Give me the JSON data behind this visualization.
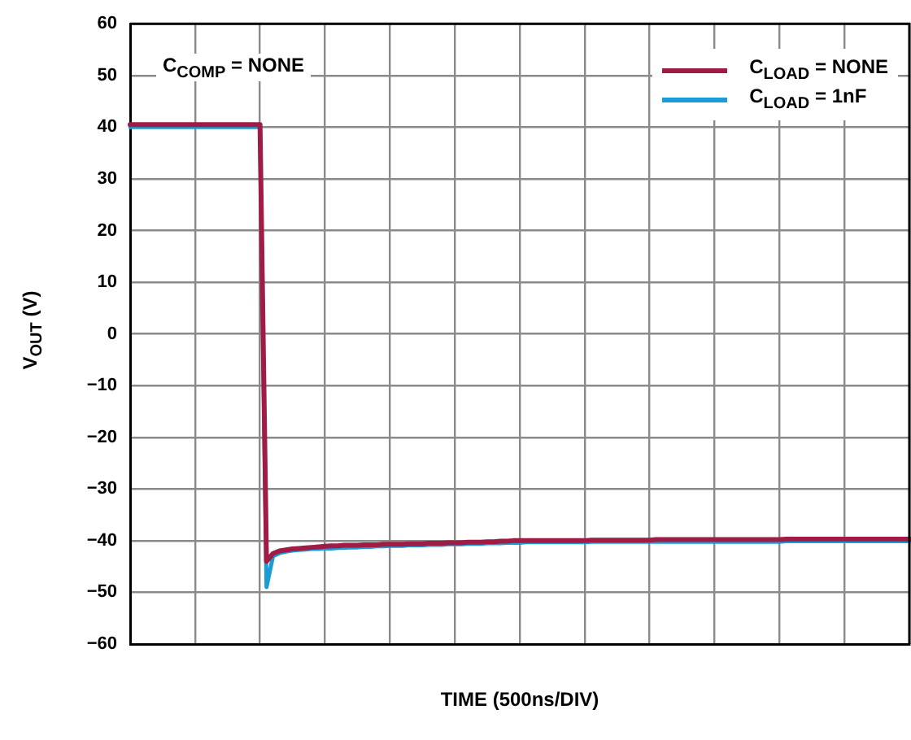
{
  "chart_data": {
    "type": "line",
    "xlabel": "TIME (500ns/DIV)",
    "ylabel": "V$_{OUT}$ (V)",
    "annotations": [
      "C$_{COMP}$ = NONE"
    ],
    "categories": [
      null,
      null,
      null,
      null,
      null,
      null,
      null,
      null,
      null,
      null,
      null,
      null,
      null,
      null,
      null,
      null,
      null,
      null,
      null,
      null,
      null,
      null,
      null,
      null,
      null,
      null,
      null,
      null,
      null,
      null,
      null,
      null,
      null,
      null,
      null,
      null,
      null,
      null,
      null,
      null,
      null,
      null,
      null,
      null,
      null,
      null,
      null,
      null,
      null,
      null,
      null,
      null,
      null,
      null,
      null,
      null,
      null,
      null,
      null,
      null,
      null,
      null,
      null,
      null,
      null,
      null,
      null,
      null,
      null,
      null,
      null,
      null,
      null,
      null,
      null,
      null,
      null,
      null,
      null,
      null,
      null,
      null,
      null,
      null,
      null,
      null,
      null,
      null,
      null,
      null,
      null,
      null,
      null,
      null,
      null,
      null,
      null,
      null,
      null,
      null,
      null,
      null,
      null,
      null,
      null,
      null,
      null,
      null,
      null,
      null,
      null,
      null,
      null,
      null,
      null,
      null,
      null,
      null,
      null,
      null,
      null
    ],
    "ylim": [
      -60,
      60
    ],
    "yticks": [
      {
        "value": -60,
        "label": "−60"
      },
      {
        "value": -50,
        "label": "−50"
      },
      {
        "value": -40,
        "label": "−40"
      },
      {
        "value": -30,
        "label": "−30"
      },
      {
        "value": -20,
        "label": "−20"
      },
      {
        "value": -10,
        "label": "−10"
      },
      0,
      10,
      20,
      30,
      40,
      50,
      60
    ],
    "grid": true,
    "legend": "top right",
    "tick_labels": "y",
    "marker": "none",
    "line_style": "solid",
    "series": [
      {
        "name": "C$_{LOAD}$ = NONE",
        "color": "#a01c44",
        "values": [
          40.5,
          40.5,
          40.5,
          40.5,
          40.5,
          40.5,
          40.5,
          40.5,
          40.5,
          40.5,
          40.5,
          40.5,
          40.5,
          40.5,
          40.5,
          40.5,
          40.5,
          40.5,
          40.5,
          40.5,
          40.5,
          -44,
          -42.5,
          -42,
          -41.8,
          -41.6,
          -41.5,
          -41.4,
          -41.3,
          -41.2,
          -41.1,
          -41.0,
          -41.0,
          -40.9,
          -40.9,
          -40.9,
          -40.8,
          -40.8,
          -40.8,
          -40.7,
          -40.7,
          -40.7,
          -40.7,
          -40.6,
          -40.6,
          -40.6,
          -40.5,
          -40.5,
          -40.5,
          -40.4,
          -40.4,
          -40.4,
          -40.3,
          -40.3,
          -40.3,
          -40.2,
          -40.2,
          -40.1,
          -40.1,
          -40.0,
          -40.0,
          -40.0,
          -40.0,
          -40.0,
          -40.0,
          -40.0,
          -40.0,
          -40.0,
          -40.0,
          -40.0,
          -40.0,
          -39.9,
          -39.9,
          -39.9,
          -39.9,
          -39.9,
          -39.9,
          -39.9,
          -39.9,
          -39.9,
          -39.9,
          -39.8,
          -39.8,
          -39.8,
          -39.8,
          -39.8,
          -39.8,
          -39.8,
          -39.8,
          -39.8,
          -39.8,
          -39.8,
          -39.8,
          -39.8,
          -39.8,
          -39.8,
          -39.8,
          -39.8,
          -39.8,
          -39.8,
          -39.8,
          -39.7,
          -39.7,
          -39.7,
          -39.7,
          -39.7,
          -39.7,
          -39.7,
          -39.7,
          -39.7,
          -39.7,
          -39.7,
          -39.7,
          -39.7,
          -39.7,
          -39.7,
          -39.7,
          -39.7,
          -39.7,
          -39.7,
          -39.7
        ]
      },
      {
        "name": "C$_{LOAD}$ = 1nF",
        "color": "#1a9dd6",
        "values": [
          40,
          40,
          40,
          40,
          40,
          40,
          40,
          40,
          40,
          40,
          40,
          40,
          40,
          40,
          40,
          40,
          40,
          40,
          40,
          40,
          40,
          -49,
          -43,
          -42.4,
          -42.1,
          -41.9,
          -41.8,
          -41.7,
          -41.6,
          -41.6,
          -41.5,
          -41.5,
          -41.4,
          -41.4,
          -41.3,
          -41.3,
          -41.2,
          -41.2,
          -41.1,
          -41.1,
          -41.0,
          -41.0,
          -41.0,
          -40.9,
          -40.9,
          -40.9,
          -40.8,
          -40.8,
          -40.8,
          -40.7,
          -40.7,
          -40.7,
          -40.6,
          -40.6,
          -40.6,
          -40.5,
          -40.5,
          -40.5,
          -40.4,
          -40.4,
          -40.4,
          -40.3,
          -40.3,
          -40.3,
          -40.3,
          -40.3,
          -40.3,
          -40.3,
          -40.3,
          -40.3,
          -40.3,
          -40.2,
          -40.2,
          -40.2,
          -40.2,
          -40.2,
          -40.2,
          -40.2,
          -40.2,
          -40.2,
          -40.2,
          -40.2,
          -40.2,
          -40.2,
          -40.2,
          -40.2,
          -40.2,
          -40.2,
          -40.2,
          -40.2,
          -40.2,
          -40.2,
          -40.2,
          -40.2,
          -40.2,
          -40.2,
          -40.2,
          -40.2,
          -40.2,
          -40.2,
          -40.2,
          -40.1,
          -40.1,
          -40.1,
          -40.1,
          -40.1,
          -40.1,
          -40.1,
          -40.1,
          -40.1,
          -40.1,
          -40.1,
          -40.1,
          -40.1,
          -40.1,
          -40.1,
          -40.1,
          -40.1,
          -40.1,
          -40.1,
          -40.1
        ]
      }
    ]
  }
}
